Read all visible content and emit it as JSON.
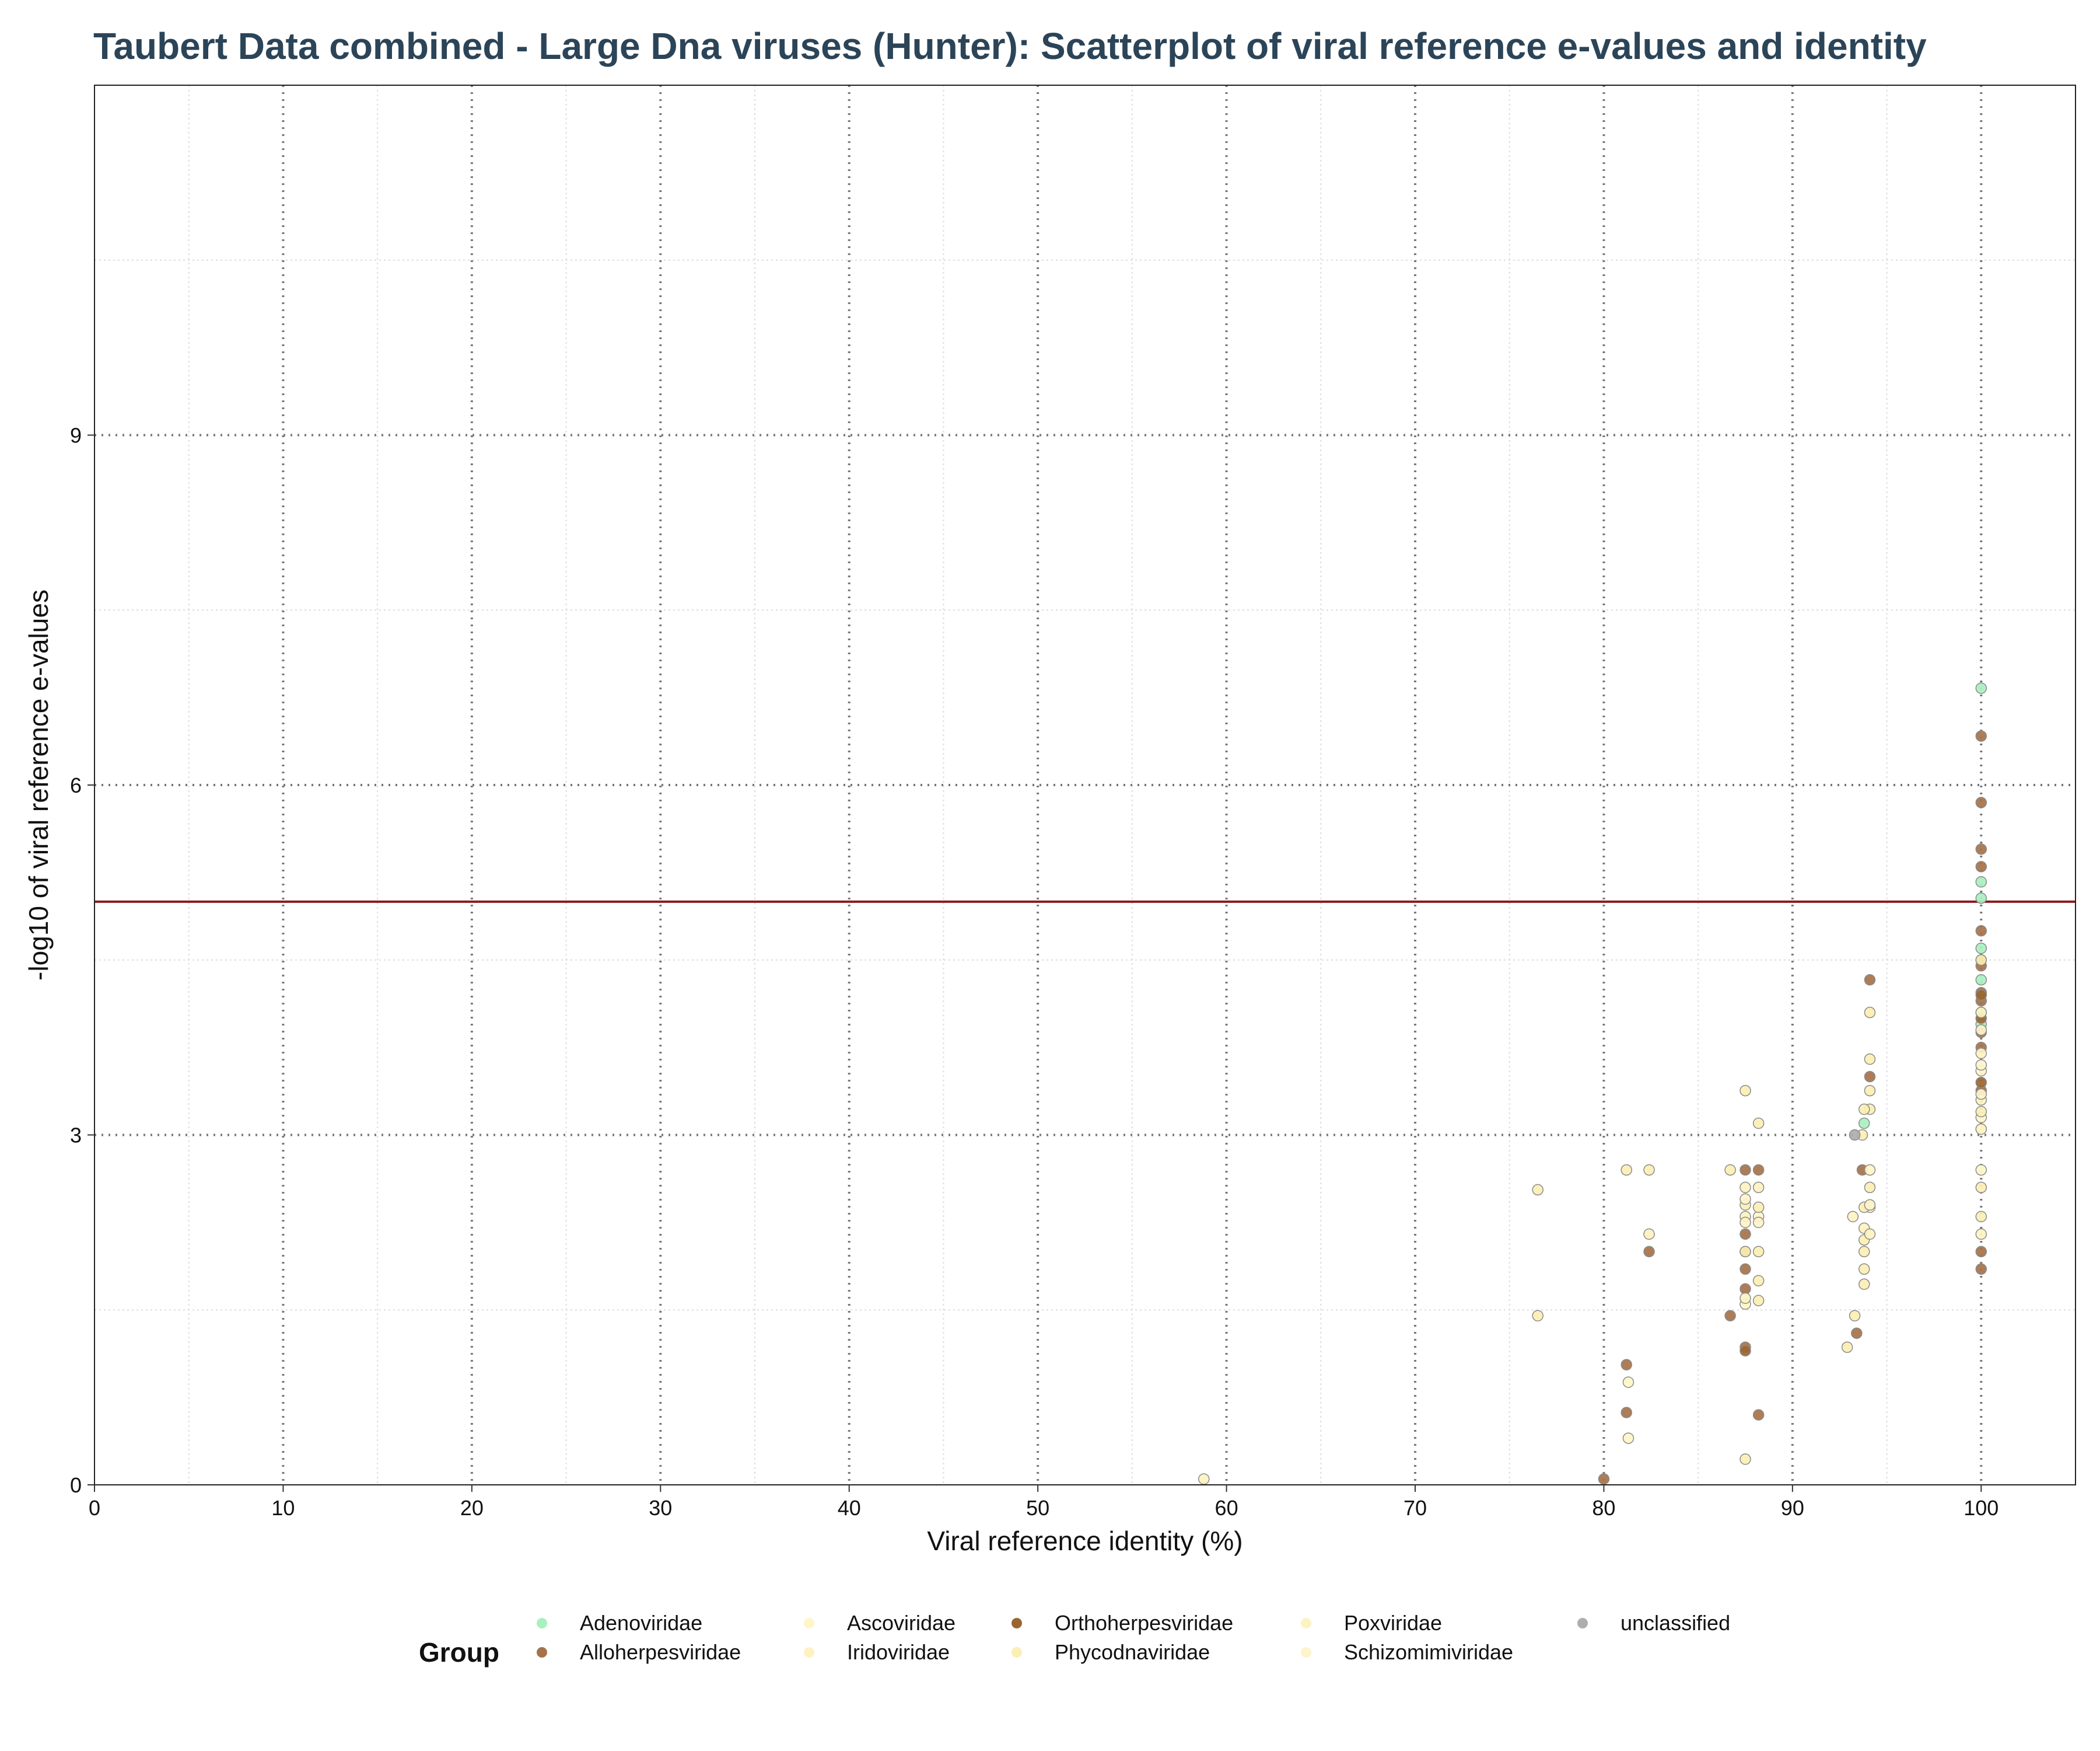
{
  "chart_data": {
    "type": "scatter",
    "title": "Taubert Data combined - Large Dna viruses (Hunter): Scatterplot of viral reference e-values and identity",
    "xlabel": "Viral reference identity (%)",
    "ylabel": "-log10 of viral reference e-values",
    "xlim": [
      0,
      105
    ],
    "ylim": [
      0,
      12
    ],
    "x_ticks": [
      "0",
      "10",
      "20",
      "30",
      "40",
      "50",
      "60",
      "70",
      "80",
      "90",
      "100"
    ],
    "y_ticks": [
      "0",
      "3",
      "6",
      "9"
    ],
    "threshold_line": {
      "y": 5,
      "color": "#8b1a1a"
    },
    "grid": true,
    "legend_title": "Group",
    "legend_position": "bottom",
    "series": [
      {
        "name": "Adenoviridae",
        "color": "#a8f0c0",
        "points": [
          [
            100,
            6.83
          ],
          [
            100,
            5.17
          ],
          [
            100,
            5.03
          ],
          [
            100,
            4.6
          ],
          [
            100,
            4.33
          ],
          [
            100,
            4.05
          ],
          [
            100,
            3.95
          ],
          [
            93.8,
            3.1
          ]
        ]
      },
      {
        "name": "Alloherpesviridae",
        "color": "#a6724a",
        "points": [
          [
            100,
            6.42
          ],
          [
            100,
            5.85
          ],
          [
            100,
            5.45
          ],
          [
            100,
            5.3
          ],
          [
            100,
            4.75
          ],
          [
            100,
            4.45
          ],
          [
            100,
            4.22
          ],
          [
            100,
            4.15
          ],
          [
            100,
            3.88
          ],
          [
            100,
            3.75
          ],
          [
            100,
            3.38
          ],
          [
            100,
            2.0
          ],
          [
            100,
            1.85
          ],
          [
            94.1,
            4.33
          ],
          [
            94.1,
            3.5
          ],
          [
            93.7,
            2.7
          ],
          [
            93.4,
            1.3
          ],
          [
            88.2,
            2.7
          ],
          [
            87.5,
            2.7
          ],
          [
            87.5,
            2.15
          ],
          [
            87.5,
            2.0
          ],
          [
            87.5,
            1.85
          ],
          [
            87.5,
            1.68
          ],
          [
            87.5,
            1.18
          ],
          [
            86.7,
            1.45
          ],
          [
            88.2,
            0.6
          ],
          [
            82.4,
            2.0
          ],
          [
            81.2,
            1.03
          ],
          [
            81.2,
            0.62
          ],
          [
            80.0,
            0.05
          ]
        ]
      },
      {
        "name": "Ascoviridae",
        "color": "#fff6c8",
        "points": [
          [
            100,
            3.55
          ],
          [
            100,
            3.15
          ],
          [
            100,
            2.7
          ],
          [
            94.1,
            2.7
          ],
          [
            88.2,
            2.3
          ],
          [
            87.5,
            1.55
          ],
          [
            81.3,
            0.88
          ],
          [
            81.3,
            0.4
          ]
        ]
      },
      {
        "name": "Iridoviridae",
        "color": "#fff2c0",
        "points": [
          [
            100,
            3.3
          ],
          [
            100,
            3.05
          ],
          [
            94.1,
            2.38
          ],
          [
            93.8,
            2.2
          ],
          [
            88.2,
            2.55
          ],
          [
            87.5,
            2.55
          ],
          [
            87.5,
            2.3
          ],
          [
            82.4,
            2.15
          ],
          [
            58.8,
            0.05
          ]
        ]
      },
      {
        "name": "Orthoherpesviridae",
        "color": "#9a6630",
        "points": [
          [
            100,
            4.5
          ],
          [
            100,
            4.2
          ],
          [
            100,
            4.0
          ],
          [
            100,
            3.45
          ],
          [
            87.5,
            1.15
          ]
        ]
      },
      {
        "name": "Phycodnaviridae",
        "color": "#fbefb4",
        "points": [
          [
            100,
            4.5
          ],
          [
            100,
            3.2
          ],
          [
            100,
            2.55
          ],
          [
            100,
            2.3
          ],
          [
            94.1,
            4.05
          ],
          [
            94.1,
            3.65
          ],
          [
            94.1,
            3.38
          ],
          [
            94.1,
            3.22
          ],
          [
            93.8,
            3.22
          ],
          [
            93.7,
            3.0
          ],
          [
            94.1,
            2.55
          ],
          [
            93.8,
            2.38
          ],
          [
            93.8,
            2.1
          ],
          [
            93.8,
            2.0
          ],
          [
            93.8,
            1.85
          ],
          [
            93.8,
            1.72
          ],
          [
            93.3,
            1.45
          ],
          [
            92.9,
            1.18
          ],
          [
            88.2,
            3.1
          ],
          [
            88.2,
            2.38
          ],
          [
            88.2,
            2.0
          ],
          [
            88.2,
            1.75
          ],
          [
            88.2,
            1.58
          ],
          [
            87.5,
            3.38
          ],
          [
            87.5,
            2.4
          ],
          [
            87.5,
            2.0
          ],
          [
            86.7,
            2.7
          ],
          [
            82.4,
            2.7
          ],
          [
            81.2,
            2.7
          ],
          [
            76.5,
            2.53
          ],
          [
            76.5,
            1.45
          ],
          [
            87.5,
            0.22
          ]
        ]
      },
      {
        "name": "Poxviridae",
        "color": "#fdf3c2",
        "points": [
          [
            100,
            4.05
          ],
          [
            100,
            3.7
          ],
          [
            100,
            3.05
          ],
          [
            100,
            2.15
          ],
          [
            94.1,
            2.15
          ],
          [
            93.2,
            2.3
          ],
          [
            87.5,
            2.25
          ],
          [
            87.5,
            1.6
          ]
        ]
      },
      {
        "name": "Schizomimiviridae",
        "color": "#fef4cc",
        "points": [
          [
            100,
            3.9
          ],
          [
            100,
            3.6
          ],
          [
            100,
            3.35
          ],
          [
            94.1,
            2.4
          ],
          [
            88.2,
            2.25
          ],
          [
            87.5,
            2.45
          ]
        ]
      },
      {
        "name": "unclassified",
        "color": "#aeaeae",
        "points": [
          [
            93.3,
            3.0
          ]
        ]
      }
    ]
  }
}
